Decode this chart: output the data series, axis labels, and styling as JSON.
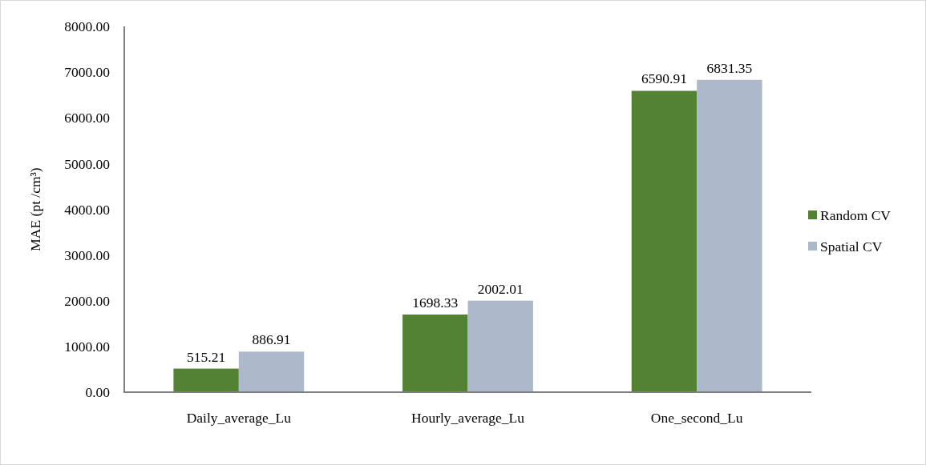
{
  "chart_data": {
    "type": "bar",
    "ylabel": "MAE (pt /cm³)",
    "categories": [
      "Daily_average_Lu",
      "Hourly_average_Lu",
      "One_second_Lu"
    ],
    "series": [
      {
        "name": "Random CV",
        "color": "#548235",
        "values": [
          515.21,
          1698.33,
          6590.91
        ]
      },
      {
        "name": "Spatial CV",
        "color": "#adb9ca",
        "values": [
          886.91,
          2002.01,
          6831.35
        ]
      }
    ],
    "ylim": [
      0,
      8000
    ],
    "yticks": [
      {
        "value": 0,
        "label": "0.00"
      },
      {
        "value": 1000,
        "label": "1000.00"
      },
      {
        "value": 2000,
        "label": "2000.00"
      },
      {
        "value": 3000,
        "label": "3000.00"
      },
      {
        "value": 4000,
        "label": "4000.00"
      },
      {
        "value": 5000,
        "label": "5000.00"
      },
      {
        "value": 6000,
        "label": "6000.00"
      },
      {
        "value": 7000,
        "label": "7000.00"
      },
      {
        "value": 8000,
        "label": "8000.00"
      }
    ],
    "data_labels": true,
    "legend": "right"
  }
}
